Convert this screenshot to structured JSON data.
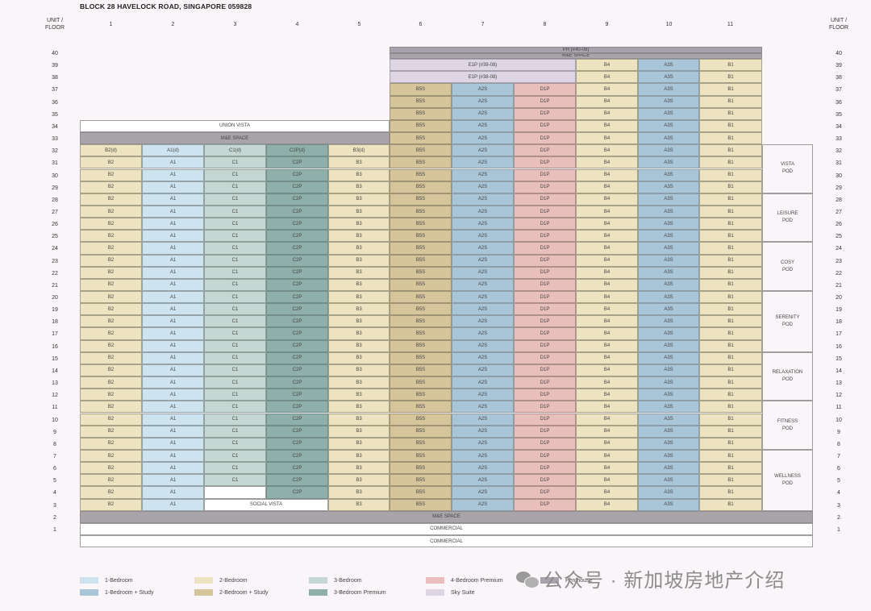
{
  "title": "BLOCK 28 HAVELOCK ROAD, SINGAPORE 059828",
  "header_left": "UNIT /\nFLOOR",
  "header_right": "UNIT /\nFLOOR",
  "columns": [
    "1",
    "2",
    "3",
    "4",
    "5",
    "6",
    "7",
    "8",
    "9",
    "10",
    "11"
  ],
  "floors": [
    "40",
    "39",
    "38",
    "37",
    "36",
    "35",
    "34",
    "33",
    "32",
    "31",
    "30",
    "29",
    "28",
    "27",
    "26",
    "25",
    "24",
    "23",
    "22",
    "21",
    "20",
    "19",
    "18",
    "17",
    "16",
    "15",
    "14",
    "13",
    "12",
    "11",
    "10",
    "9",
    "8",
    "7",
    "6",
    "5",
    "4",
    "3",
    "2",
    "1"
  ],
  "unit_types": {
    "c1": "B2",
    "c2": "A1",
    "c3": "C1",
    "c4": "C2P",
    "c5": "B3",
    "c6": "B5S",
    "c7": "A2S",
    "c8": "D1P",
    "c9": "B4",
    "c10": "A3S",
    "c11": "B1"
  },
  "special_units": {
    "f32": [
      "B2(d)",
      "A1(d)",
      "C1(d)",
      "C2P(d)",
      "B3(d)"
    ],
    "ph": "PH (#40-08)",
    "e39": "E1P (#39-08)",
    "e38": "E1P (#38-08)"
  },
  "blocks": {
    "union_vista": "UNION VISTA",
    "social_vista": "SOCIAL VISTA",
    "me_space": "M&E SPACE",
    "commercial": "COMMERCIAL"
  },
  "pods": [
    "VISTA\nPOD",
    "LEISURE\nPOD",
    "COSY\nPOD",
    "SERENITY\nPOD",
    "RELAXATION\nPOD",
    "FITNESS\nPOD",
    "WELLNESS\nPOD"
  ],
  "legend": [
    {
      "label": "1-Bedroom",
      "color": "#cde3ef"
    },
    {
      "label": "1-Bedroom + Study",
      "color": "#a9c5d8"
    },
    {
      "label": "2-Bedroom",
      "color": "#ede3c0"
    },
    {
      "label": "2-Bedroom + Study",
      "color": "#d6c59b"
    },
    {
      "label": "3-Bedroom",
      "color": "#c4d7d2"
    },
    {
      "label": "3-Bedroom Premium",
      "color": "#8fafaa"
    },
    {
      "label": "4-Bedroom Premium",
      "color": "#e8bfbb"
    },
    {
      "label": "Penthouse",
      "color": "#a7a2ac"
    },
    {
      "label": "Sky Suite",
      "color": "#ddd5e4"
    }
  ],
  "watermark": "公众号 · 新加坡房地产介绍"
}
